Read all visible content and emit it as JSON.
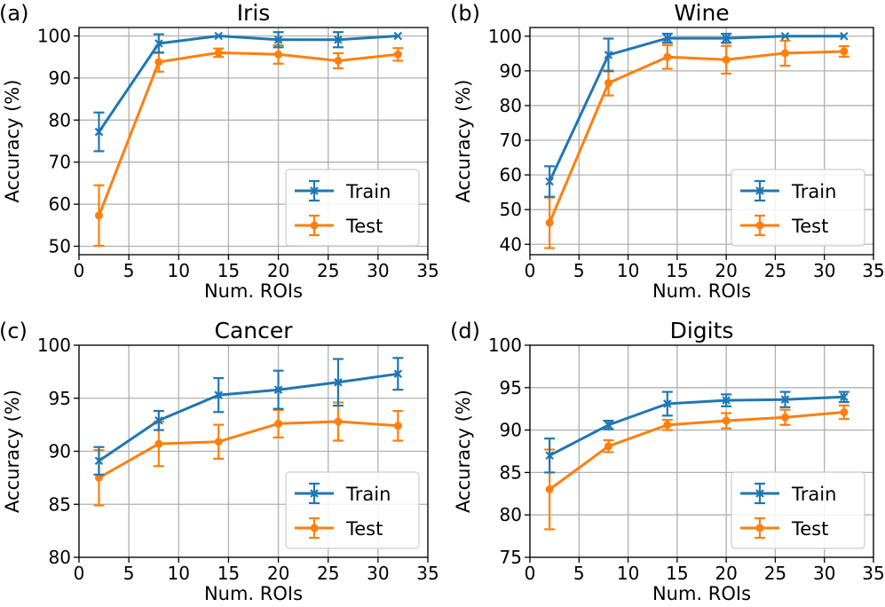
{
  "colors": {
    "train": "#1f77b4",
    "test": "#ff7f0e",
    "grid": "#b0b0b0",
    "axis": "#000000",
    "legend_border": "#cccccc"
  },
  "chart_data": [
    {
      "type": "line",
      "panel_label": "(a)",
      "title": "Iris",
      "xlabel": "Num. ROIs",
      "ylabel": "Accuracy (%)",
      "xlim": [
        0,
        35
      ],
      "ylim": [
        48,
        102
      ],
      "xticks": [
        0,
        5,
        10,
        15,
        20,
        25,
        30,
        35
      ],
      "yticks": [
        50,
        60,
        70,
        80,
        90,
        100
      ],
      "grid": true,
      "legend_position": "lower-right",
      "x": [
        2,
        8,
        14,
        20,
        26,
        32
      ],
      "series": [
        {
          "name": "Train",
          "marker": "x",
          "values": [
            77.2,
            98.2,
            100,
            99.1,
            99.1,
            100
          ],
          "errors": [
            4.6,
            2.2,
            0,
            1.8,
            1.8,
            0
          ]
        },
        {
          "name": "Test",
          "marker": "o",
          "values": [
            57.3,
            93.8,
            96.0,
            95.6,
            94.1,
            95.6
          ],
          "errors": [
            7.2,
            2.3,
            1.0,
            2.2,
            1.8,
            1.5
          ]
        }
      ]
    },
    {
      "type": "line",
      "panel_label": "(b)",
      "title": "Wine",
      "xlabel": "Num. ROIs",
      "ylabel": "Accuracy (%)",
      "xlim": [
        0,
        35
      ],
      "ylim": [
        37,
        102.5
      ],
      "xticks": [
        0,
        5,
        10,
        15,
        20,
        25,
        30,
        35
      ],
      "yticks": [
        40,
        50,
        60,
        70,
        80,
        90,
        100
      ],
      "grid": true,
      "legend_position": "lower-right",
      "x": [
        2,
        8,
        14,
        20,
        26,
        32
      ],
      "series": [
        {
          "name": "Train",
          "marker": "x",
          "values": [
            58.1,
            94.6,
            99.4,
            99.4,
            100,
            100
          ],
          "errors": [
            4.4,
            4.7,
            1.3,
            1.3,
            0,
            0
          ]
        },
        {
          "name": "Test",
          "marker": "o",
          "values": [
            46.2,
            86.5,
            94.0,
            93.2,
            95.1,
            95.6
          ],
          "errors": [
            7.3,
            3.6,
            3.4,
            4.0,
            3.6,
            1.5
          ]
        }
      ]
    },
    {
      "type": "line",
      "panel_label": "(c)",
      "title": "Cancer",
      "xlabel": "Num. ROIs",
      "ylabel": "Accuracy (%)",
      "xlim": [
        0,
        35
      ],
      "ylim": [
        80,
        100
      ],
      "xticks": [
        0,
        5,
        10,
        15,
        20,
        25,
        30,
        35
      ],
      "yticks": [
        80,
        85,
        90,
        95,
        100
      ],
      "grid": true,
      "legend_position": "lower-right",
      "x": [
        2,
        8,
        14,
        20,
        26,
        32
      ],
      "series": [
        {
          "name": "Train",
          "marker": "x",
          "values": [
            89.1,
            92.9,
            95.3,
            95.8,
            96.5,
            97.3
          ],
          "errors": [
            1.3,
            0.9,
            1.6,
            1.8,
            2.2,
            1.5
          ]
        },
        {
          "name": "Test",
          "marker": "o",
          "values": [
            87.5,
            90.7,
            90.9,
            92.6,
            92.8,
            92.4
          ],
          "errors": [
            2.6,
            2.1,
            1.6,
            1.3,
            1.8,
            1.4
          ]
        }
      ]
    },
    {
      "type": "line",
      "panel_label": "(d)",
      "title": "Digits",
      "xlabel": "Num. ROIs",
      "ylabel": "Accuracy (%)",
      "xlim": [
        0,
        35
      ],
      "ylim": [
        75,
        100
      ],
      "xticks": [
        0,
        5,
        10,
        15,
        20,
        25,
        30,
        35
      ],
      "yticks": [
        75,
        80,
        85,
        90,
        95,
        100
      ],
      "grid": true,
      "legend_position": "lower-right",
      "x": [
        2,
        8,
        14,
        20,
        26,
        32
      ],
      "series": [
        {
          "name": "Train",
          "marker": "x",
          "values": [
            87.0,
            90.6,
            93.1,
            93.5,
            93.6,
            93.9
          ],
          "errors": [
            2.0,
            0.5,
            1.4,
            0.7,
            0.9,
            0.6
          ]
        },
        {
          "name": "Test",
          "marker": "o",
          "values": [
            83.0,
            88.1,
            90.6,
            91.1,
            91.5,
            92.1
          ],
          "errors": [
            4.7,
            0.7,
            0.6,
            0.9,
            0.9,
            0.8
          ]
        }
      ]
    }
  ]
}
